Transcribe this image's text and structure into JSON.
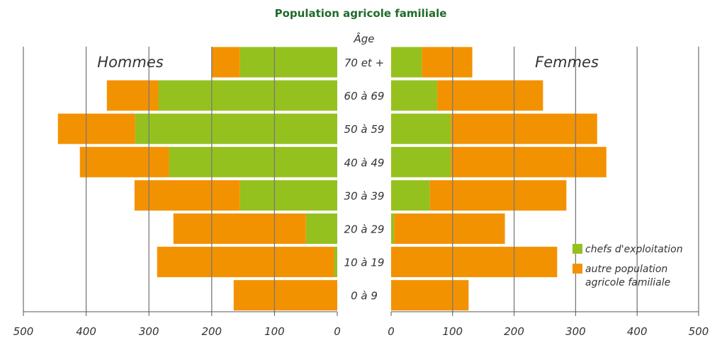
{
  "chart_data": {
    "type": "bar",
    "orientation": "horizontal",
    "layout": "population-pyramid",
    "title": "Population agricole familiale",
    "category_axis_label": "Âge",
    "categories": [
      "70 et +",
      "60 à 69",
      "50 à 59",
      "40 à 49",
      "30 à 39",
      "20 à 29",
      "10 à 19",
      "0 à 9"
    ],
    "sides": [
      {
        "name": "Hommes",
        "xlim": [
          0,
          500
        ],
        "ticks": [
          "500",
          "400",
          "300",
          "200",
          "100",
          "0"
        ],
        "series": [
          {
            "name": "chefs d'exploitation",
            "values": [
              155,
              285,
              322,
              268,
              155,
              50,
              5,
              0
            ]
          },
          {
            "name": "autre population agricole familiale",
            "values": [
              45,
              82,
              123,
              142,
              168,
              211,
              282,
              165
            ]
          }
        ]
      },
      {
        "name": "Femmes",
        "xlim": [
          0,
          500
        ],
        "ticks": [
          "0",
          "100",
          "200",
          "300",
          "400",
          "500"
        ],
        "series": [
          {
            "name": "chefs d'exploitation",
            "values": [
              50,
              75,
              97,
              97,
              63,
              5,
              0,
              0
            ]
          },
          {
            "name": "autre population agricole familiale",
            "values": [
              82,
              172,
              238,
              253,
              222,
              180,
              270,
              126
            ]
          }
        ]
      }
    ],
    "colors": {
      "chefs d'exploitation": "#95c11f",
      "autre population agricole familiale": "#f39200",
      "grid": "#7a7a7a"
    },
    "grid": true,
    "legend": {
      "position": "bottom-right",
      "items": [
        {
          "series": "chefs d'exploitation",
          "lines": [
            "chefs d'exploitation"
          ]
        },
        {
          "series": "autre population agricole familiale",
          "lines": [
            "autre population",
            "agricole familiale"
          ]
        }
      ]
    }
  }
}
